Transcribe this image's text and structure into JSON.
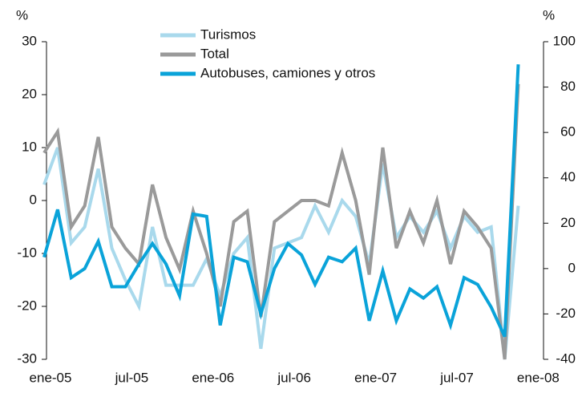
{
  "chart_data": {
    "type": "line",
    "y_unit": "%",
    "y2_unit": "%",
    "categories": [
      "ene-05",
      null,
      null,
      null,
      null,
      null,
      "jul-05",
      null,
      null,
      null,
      null,
      null,
      "ene-06",
      null,
      null,
      null,
      null,
      null,
      "jul-06",
      null,
      null,
      null,
      null,
      null,
      "ene-07",
      null,
      null,
      null,
      null,
      null,
      "jul-07",
      null,
      null,
      null,
      null,
      null,
      "ene-08"
    ],
    "ylim": [
      -30,
      30
    ],
    "yticks": [
      -30,
      -20,
      -10,
      0,
      10,
      20,
      30
    ],
    "y2lim": [
      -40,
      100
    ],
    "y2ticks": [
      -40,
      -20,
      0,
      20,
      40,
      60,
      80,
      100
    ],
    "series": [
      {
        "name": "Turismos",
        "color": "#a9d9ec",
        "values": [
          3,
          10,
          -8,
          -5,
          6,
          -9,
          -15,
          -20,
          -5,
          -16,
          -16,
          -16,
          -11,
          -18,
          -10,
          -7,
          -28,
          -9,
          -8,
          -7,
          -1,
          -6,
          0,
          -3,
          -12,
          7,
          -7,
          -3,
          -6,
          -2,
          -9,
          -3,
          -6,
          -5,
          -30,
          -1,
          null
        ]
      },
      {
        "name": "Total",
        "color": "#9a9a9a",
        "values": [
          9,
          13,
          -5,
          -1,
          12,
          -5,
          -9,
          -12,
          3,
          -7,
          -13,
          -2,
          -10,
          -20,
          -4,
          -2,
          -22,
          -4,
          -2,
          0,
          0,
          -1,
          9,
          0,
          -14,
          10,
          -9,
          -2,
          -8,
          0,
          -12,
          -2,
          -5,
          -9,
          -30,
          22,
          null
        ]
      },
      {
        "name": "Autobuses, camiones y otros",
        "color": "#0aa3d9",
        "axis": "y2",
        "values": [
          5,
          26,
          -4,
          0,
          12,
          -8,
          -8,
          2,
          11,
          2,
          -12,
          24,
          23,
          -25,
          5,
          3,
          -20,
          0,
          11,
          6,
          -7,
          5,
          3,
          9,
          -23,
          -1,
          -23,
          -9,
          -13,
          -8,
          -25,
          -4,
          -7,
          -17,
          -30,
          90,
          null
        ]
      }
    ]
  }
}
